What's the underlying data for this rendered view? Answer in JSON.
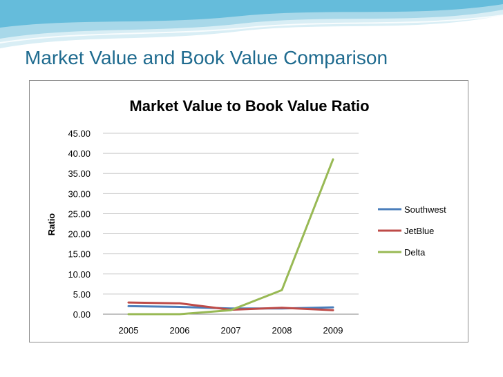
{
  "slide": {
    "title": "Market Value and Book Value Comparison"
  },
  "colors": {
    "title_text": "#1f6b8f",
    "banner_light": "#d9eef5",
    "banner_mid": "#9fd3e6",
    "banner_dark": "#4fb3d6"
  },
  "chart_data": {
    "type": "line",
    "title": "Market Value to Book Value Ratio",
    "xlabel": "",
    "ylabel": "Ratio",
    "categories": [
      "2005",
      "2006",
      "2007",
      "2008",
      "2009"
    ],
    "ylim": [
      0,
      45
    ],
    "yticks": [
      "45.00",
      "40.00",
      "35.00",
      "30.00",
      "25.00",
      "20.00",
      "15.00",
      "10.00",
      "5.00",
      "0.00"
    ],
    "ytick_values": [
      45,
      40,
      35,
      30,
      25,
      20,
      15,
      10,
      5,
      0
    ],
    "grid": true,
    "legend_position": "right",
    "series": [
      {
        "name": "Southwest",
        "color": "#4a7ebb",
        "values": [
          2.0,
          1.8,
          1.4,
          1.4,
          1.7
        ]
      },
      {
        "name": "JetBlue",
        "color": "#be4b48",
        "values": [
          2.9,
          2.7,
          1.1,
          1.6,
          1.0
        ]
      },
      {
        "name": "Delta",
        "color": "#98b954",
        "values": [
          0.0,
          0.0,
          1.0,
          6.0,
          38.5
        ]
      }
    ]
  }
}
